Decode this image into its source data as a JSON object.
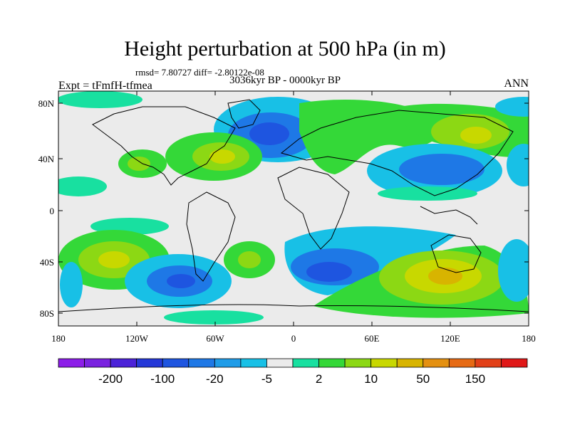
{
  "title": "Height perturbation at 500 hPa (in m)",
  "stats": "rmsd= 7.80727 diff= -2.80122e-08",
  "period": "3036kyr BP - 0000kyr BP",
  "experiment": "Expt = tFmfH-tfmea",
  "season": "ANN",
  "map": {
    "lon_ticks": [
      "180",
      "120W",
      "60W",
      "0",
      "60E",
      "120E",
      "180"
    ],
    "lat_ticks": [
      "80N",
      "40N",
      "0",
      "40S",
      "80S"
    ]
  },
  "colorbar": {
    "colors": [
      "#8c1de8",
      "#7a22e0",
      "#4b22d8",
      "#2538d8",
      "#1e55e0",
      "#1e78e6",
      "#1f9ce8",
      "#18c0e6",
      "#ebebeb",
      "#18e0a0",
      "#34d838",
      "#8cd814",
      "#c8d800",
      "#d8b400",
      "#e49010",
      "#e66a14",
      "#e24018",
      "#e01818"
    ],
    "labels": [
      "-200",
      "-100",
      "-20",
      "-5",
      "2",
      "10",
      "50",
      "150"
    ]
  },
  "colors": {
    "background_field": "#ebebeb",
    "green": "#34d838",
    "yellow": "#c8d800",
    "orange": "#d8b400",
    "cyan": "#18c0e6",
    "blue": "#1e78e6",
    "darkblue": "#1e55e0",
    "teal": "#18e0a0"
  }
}
